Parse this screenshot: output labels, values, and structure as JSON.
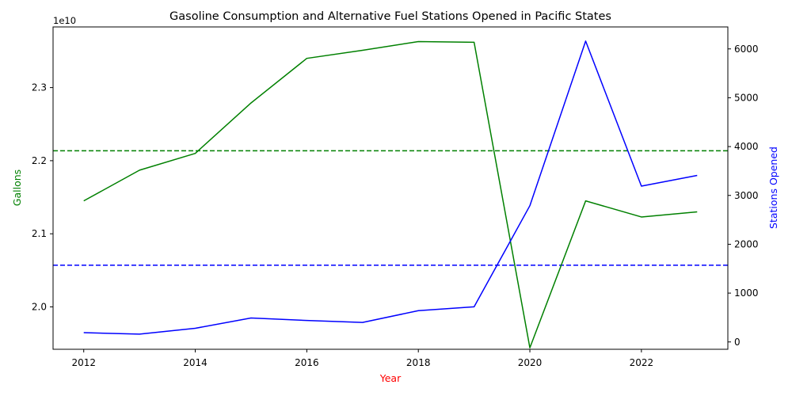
{
  "chart_data": {
    "type": "line",
    "title": "Gasoline Consumption and Alternative Fuel Stations Opened in Pacific States",
    "xlabel": "Year",
    "x": [
      2012,
      2013,
      2014,
      2015,
      2016,
      2017,
      2018,
      2019,
      2020,
      2021,
      2022,
      2023
    ],
    "x_ticks": [
      "2012",
      "2014",
      "2016",
      "2018",
      "2020",
      "2022"
    ],
    "y_left": {
      "label": "Gallons",
      "offset_text": "1e10",
      "ticks": [
        "2.0",
        "2.1",
        "2.2",
        "2.3"
      ],
      "range": [
        1.942,
        2.383
      ],
      "color": "#008000"
    },
    "y_right": {
      "label": "Stations Opened",
      "ticks": [
        "0",
        "1000",
        "2000",
        "3000",
        "4000",
        "5000",
        "6000"
      ],
      "range": [
        -150,
        6450
      ],
      "color": "#0000ff"
    },
    "series": [
      {
        "axis": "left",
        "color": "#008000",
        "values": [
          2.145,
          2.187,
          2.21,
          2.279,
          2.34,
          2.351,
          2.363,
          2.362,
          1.944,
          2.145,
          2.123,
          2.13
        ]
      },
      {
        "axis": "right",
        "color": "#0000ff",
        "values": [
          190,
          160,
          280,
          490,
          440,
          400,
          640,
          720,
          2790,
          6160,
          3190,
          3410
        ]
      }
    ],
    "reference_lines": [
      {
        "axis": "left",
        "value": 2.2135,
        "color": "#008000",
        "style": "dashed"
      },
      {
        "axis": "right",
        "value": 1570,
        "color": "#0000ff",
        "style": "dashed"
      }
    ],
    "x_range": [
      2011.45,
      2023.55
    ],
    "xlabel_color": "#ff0000",
    "grid": false,
    "legend": "none"
  }
}
